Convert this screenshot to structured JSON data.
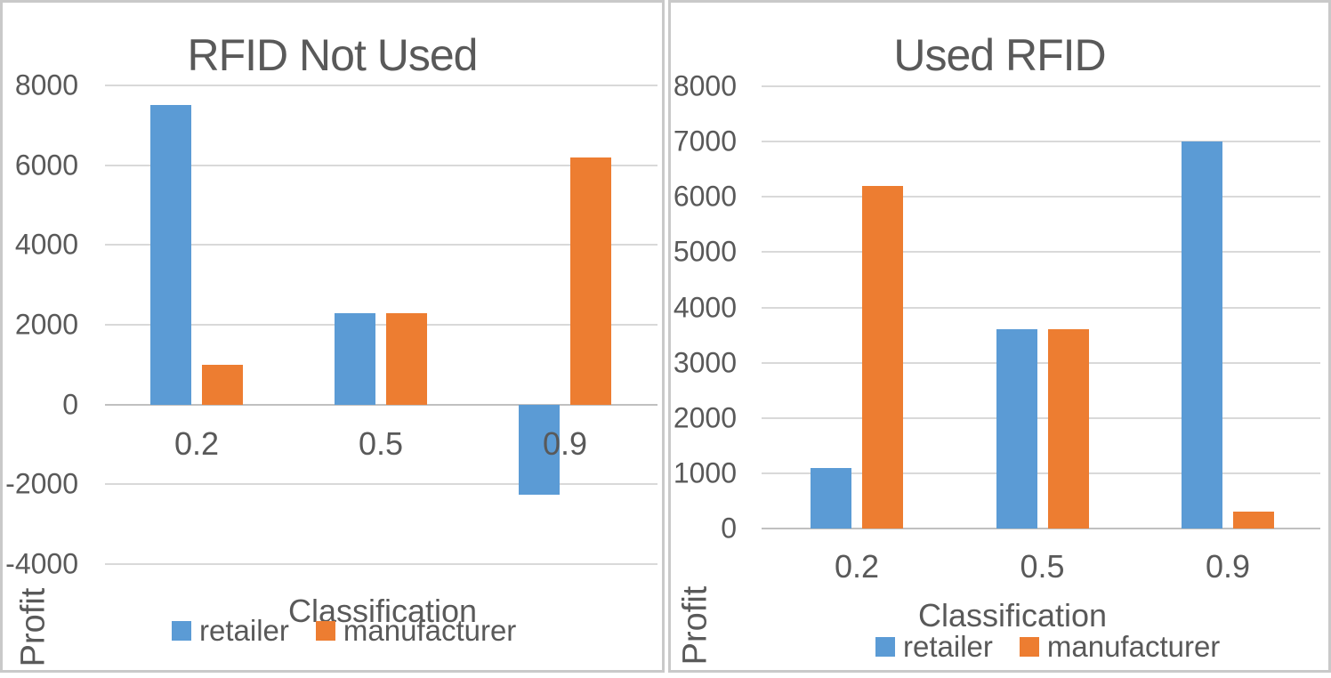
{
  "figure": {
    "background": "#ffffff",
    "panel_border_color": "#c9c9c9",
    "text_color": "#595959",
    "gridline_color": "#d9d9d9",
    "zero_line_color": "#c0c0c0"
  },
  "chart_data": [
    {
      "type": "bar",
      "title": "RFID Not Used",
      "xlabel": "Classification",
      "ylabel": "Profit",
      "categories": [
        "0.2",
        "0.5",
        "0.9"
      ],
      "series": [
        {
          "name": "retailer",
          "color": "#5B9BD5",
          "values": [
            7500,
            2300,
            -2250
          ]
        },
        {
          "name": "manufacturer",
          "color": "#ED7D31",
          "values": [
            1000,
            2300,
            6200
          ]
        }
      ],
      "ylim": [
        -4000,
        8000
      ],
      "yticks": [
        8000,
        6000,
        4000,
        2000,
        0,
        -2000,
        -4000
      ],
      "grid": true,
      "legend_position": "bottom"
    },
    {
      "type": "bar",
      "title": "Used RFID",
      "xlabel": "Classification",
      "ylabel": "Profit",
      "categories": [
        "0.2",
        "0.5",
        "0.9"
      ],
      "series": [
        {
          "name": "retailer",
          "color": "#5B9BD5",
          "values": [
            1100,
            3600,
            7000
          ]
        },
        {
          "name": "manufacturer",
          "color": "#ED7D31",
          "values": [
            6200,
            3600,
            300
          ]
        }
      ],
      "ylim": [
        0,
        8000
      ],
      "yticks": [
        8000,
        7000,
        6000,
        5000,
        4000,
        3000,
        2000,
        1000,
        0
      ],
      "grid": true,
      "legend_position": "bottom"
    }
  ]
}
